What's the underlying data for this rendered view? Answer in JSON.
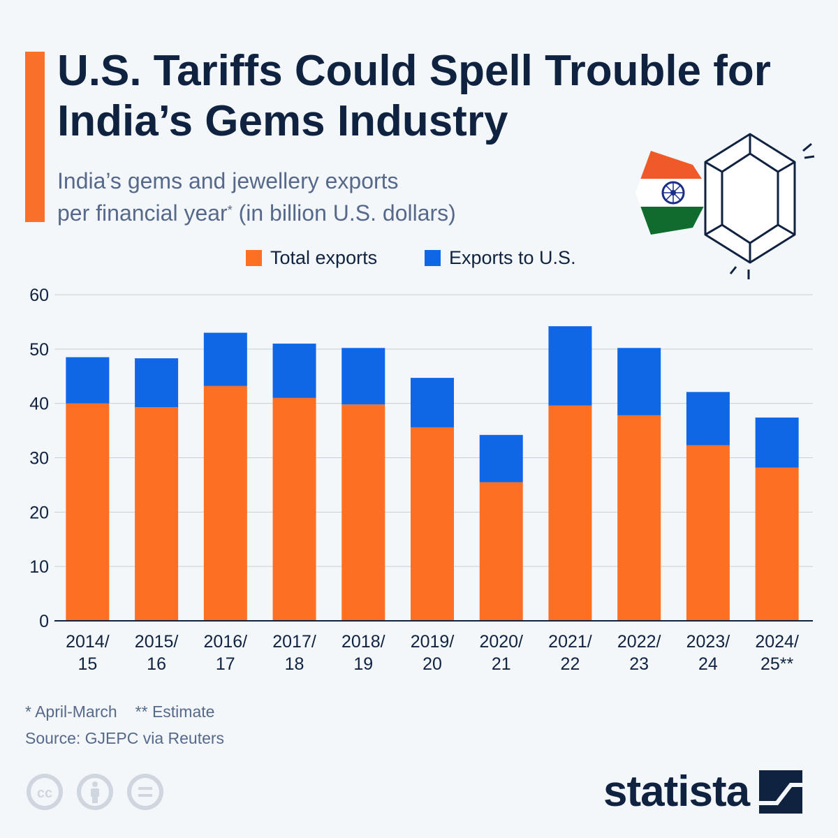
{
  "title": "U.S. Tariffs Could Spell Trouble for India’s Gems Industry",
  "subtitle_line1": "India’s gems and jewellery exports",
  "subtitle_line2_pre": "per financial year",
  "subtitle_sup": "*",
  "subtitle_line2_post": " (in billion U.S. dollars)",
  "legend": {
    "total": "Total exports",
    "us": "Exports to U.S."
  },
  "colors": {
    "total": "#fd6f23",
    "us": "#0f67e5",
    "text": "#0f2240",
    "grid": "#c8cfd8"
  },
  "footnote_1": "* April-March",
  "footnote_2": "** Estimate",
  "source": "Source: GJEPC via Reuters",
  "logo": "statista",
  "icons": [
    "cc-icon",
    "by-icon",
    "nd-icon",
    "india-flag-icon",
    "gem-icon",
    "statista-logo-icon"
  ],
  "chart_data": {
    "type": "bar",
    "stacked": true,
    "categories": [
      [
        "2014/",
        "15"
      ],
      [
        "2015/",
        "16"
      ],
      [
        "2016/",
        "17"
      ],
      [
        "2017/",
        "18"
      ],
      [
        "2018/",
        "19"
      ],
      [
        "2019/",
        "20"
      ],
      [
        "2020/",
        "21"
      ],
      [
        "2021/",
        "22"
      ],
      [
        "2022/",
        "23"
      ],
      [
        "2023/",
        "24"
      ],
      [
        "2024/",
        "25**"
      ]
    ],
    "series": [
      {
        "name": "Total exports",
        "values": [
          40.0,
          39.3,
          43.2,
          41.0,
          39.8,
          35.6,
          25.5,
          39.6,
          37.8,
          32.3,
          28.2
        ]
      },
      {
        "name": "Exports to U.S.",
        "values": [
          8.5,
          9.0,
          9.8,
          10.0,
          10.4,
          9.1,
          8.7,
          14.6,
          12.4,
          9.8,
          9.2
        ]
      }
    ],
    "ylim": [
      0,
      60
    ],
    "yticks": [
      0,
      10,
      20,
      30,
      40,
      50,
      60
    ],
    "grid": true,
    "legend_position": "top-center"
  }
}
